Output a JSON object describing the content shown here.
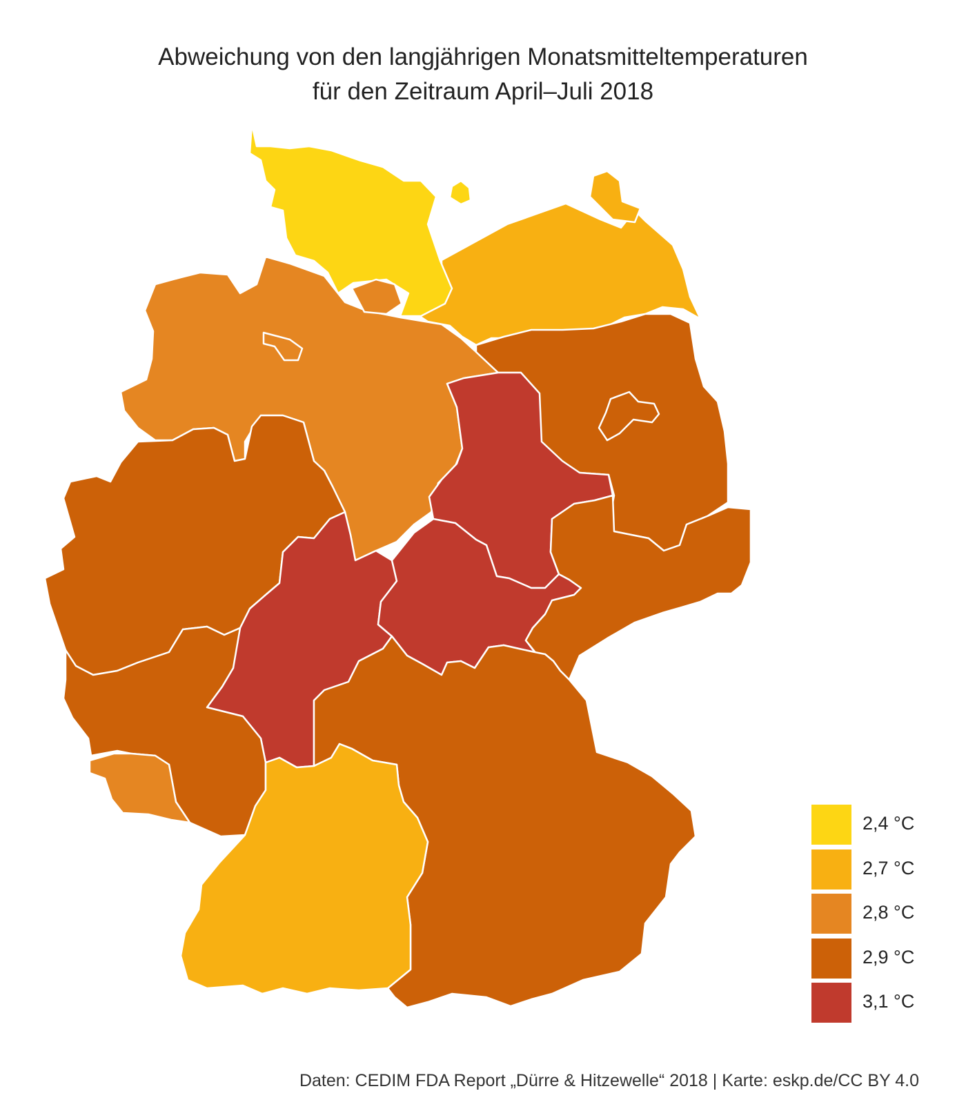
{
  "title": {
    "line1": "Abweichung von den langjährigen Monatsmitteltemperaturen",
    "line2": "für den Zeitraum April–Juli 2018"
  },
  "legend": [
    {
      "label": "2,4 °C",
      "value": 2.4,
      "color": "#fdd614"
    },
    {
      "label": "2,7 °C",
      "value": 2.7,
      "color": "#f8b012"
    },
    {
      "label": "2,8 °C",
      "value": 2.8,
      "color": "#e58622"
    },
    {
      "label": "2,9 °C",
      "value": 2.9,
      "color": "#cc6108"
    },
    {
      "label": "3,1 °C",
      "value": 3.1,
      "color": "#c03a2d"
    }
  ],
  "regions": [
    {
      "id": "schleswig-holstein",
      "value": 2.4,
      "color": "#fdd614"
    },
    {
      "id": "mecklenburg-vorpommern",
      "value": 2.7,
      "color": "#f8b012"
    },
    {
      "id": "hamburg",
      "value": 2.8,
      "color": "#e58622"
    },
    {
      "id": "niedersachsen",
      "value": 2.8,
      "color": "#e58622"
    },
    {
      "id": "bremen",
      "value": 2.8,
      "color": "#e58622"
    },
    {
      "id": "brandenburg",
      "value": 2.9,
      "color": "#cc6108"
    },
    {
      "id": "berlin",
      "value": 2.9,
      "color": "#cc6108"
    },
    {
      "id": "sachsen-anhalt",
      "value": 3.1,
      "color": "#c03a2d"
    },
    {
      "id": "nordrhein-westfalen",
      "value": 2.9,
      "color": "#cc6108"
    },
    {
      "id": "hessen",
      "value": 3.1,
      "color": "#c03a2d"
    },
    {
      "id": "thueringen",
      "value": 3.1,
      "color": "#c03a2d"
    },
    {
      "id": "sachsen",
      "value": 2.9,
      "color": "#cc6108"
    },
    {
      "id": "rheinland-pfalz",
      "value": 2.9,
      "color": "#cc6108"
    },
    {
      "id": "saarland",
      "value": 2.8,
      "color": "#e58622"
    },
    {
      "id": "bayern",
      "value": 2.9,
      "color": "#cc6108"
    },
    {
      "id": "baden-wuerttemberg",
      "value": 2.7,
      "color": "#f8b012"
    }
  ],
  "source": "Daten: CEDIM FDA Report „Dürre & Hitzewelle“ 2018 | Karte: eskp.de/CC BY 4.0"
}
